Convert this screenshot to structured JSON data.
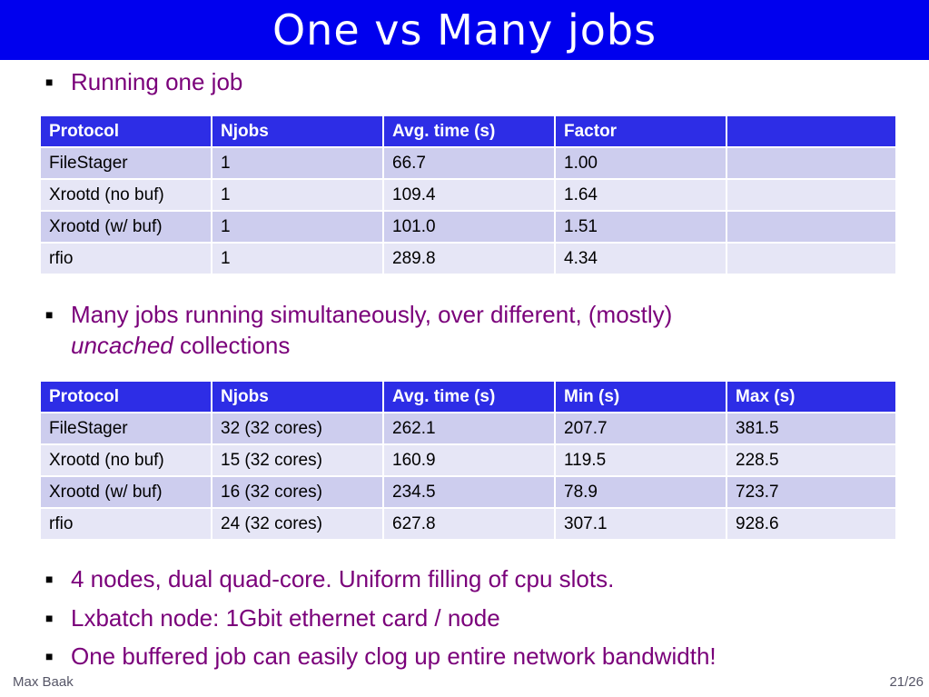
{
  "slide": {
    "title": "One vs Many jobs",
    "bullet_symbol": "■",
    "bullet1": "Running one job",
    "bullet2_line1": "Many jobs running simultaneously, over different, (mostly)",
    "bullet2_italic": "uncached",
    "bullet2_rest": " collections",
    "bullet3": "4 nodes, dual quad-core. Uniform filling of cpu slots.",
    "bullet4": "Lxbatch node: 1Gbit ethernet card / node",
    "bullet5": "One buffered job can easily clog up entire network bandwidth!"
  },
  "table1": {
    "headers": [
      "Protocol",
      "Njobs",
      "Avg. time (s)",
      "Factor",
      ""
    ],
    "rows": [
      [
        "FileStager",
        "1",
        "66.7",
        "1.00",
        ""
      ],
      [
        "Xrootd (no buf)",
        "1",
        "109.4",
        "1.64",
        ""
      ],
      [
        "Xrootd (w/ buf)",
        "1",
        "101.0",
        "1.51",
        ""
      ],
      [
        "rfio",
        "1",
        "289.8",
        "4.34",
        ""
      ]
    ]
  },
  "table2": {
    "headers": [
      "Protocol",
      "Njobs",
      "Avg. time (s)",
      "Min (s)",
      "Max (s)"
    ],
    "rows": [
      [
        "FileStager",
        "32  (32 cores)",
        "262.1",
        "207.7",
        "381.5"
      ],
      [
        "Xrootd (no buf)",
        "15  (32 cores)",
        "160.9",
        "119.5",
        "228.5"
      ],
      [
        "Xrootd (w/ buf)",
        "16  (32 cores)",
        "234.5",
        "78.9",
        "723.7"
      ],
      [
        "rfio",
        "24  (32 cores)",
        "627.8",
        "307.1",
        "928.6"
      ]
    ]
  },
  "footer": {
    "author": "Max Baak",
    "page": "21/26"
  },
  "colors": {
    "title_bar": "#0000ee",
    "header_cell": "#2d2de6",
    "row_odd": "#cdcdee",
    "row_even": "#e6e6f6",
    "bullet_text": "#7a007a"
  }
}
